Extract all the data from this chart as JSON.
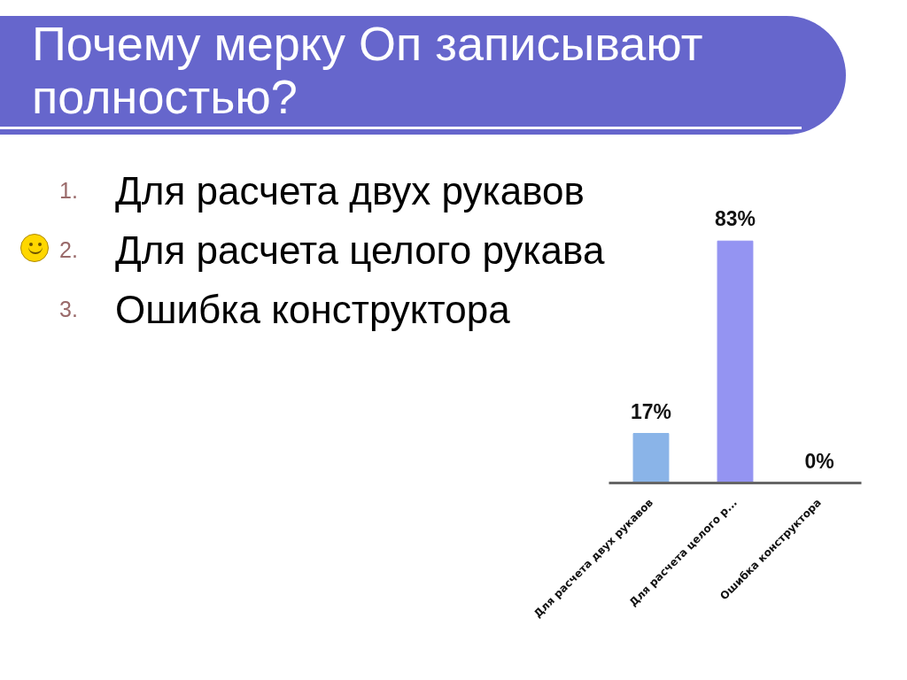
{
  "chart_data": {
    "type": "bar",
    "title": "Почему мерку Оп записывают полностью?",
    "annotations": [
      "1. Для расчета двух рукавов",
      "2. Для расчета целого рукава",
      "3. Ошибка конструктора"
    ],
    "categories": [
      "Для расчета двух рукавов",
      "Для расчета целого р...",
      "Ошибка конструктора"
    ],
    "values": [
      17,
      83,
      0
    ],
    "colors": [
      "#8ab4e8",
      "#9494f2",
      "#8b4a4a"
    ],
    "value_labels": [
      "17%",
      "83%",
      "0%"
    ],
    "tick_labels": "x"
  }
}
